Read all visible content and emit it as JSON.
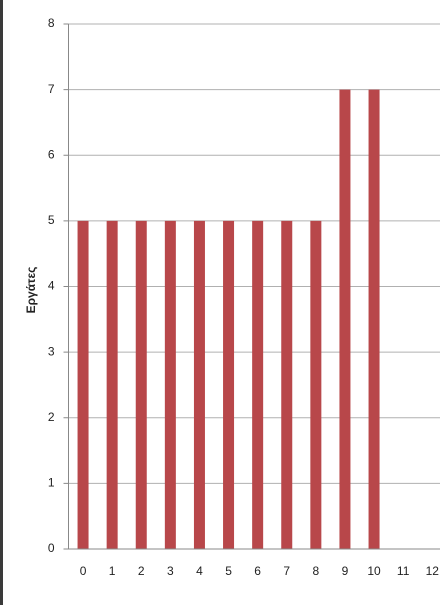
{
  "chart_data": {
    "type": "bar",
    "y_label": "Εργάτες",
    "categories": [
      "0",
      "1",
      "2",
      "3",
      "4",
      "5",
      "6",
      "7",
      "8",
      "9",
      "10",
      "11",
      "12"
    ],
    "values": [
      5,
      5,
      5,
      5,
      5,
      5,
      5,
      5,
      5,
      7,
      7,
      null,
      null
    ],
    "color": "#b8474a",
    "ylim": [
      0,
      8
    ],
    "yticks": [
      0,
      1,
      2,
      3,
      4,
      5,
      6,
      7,
      8
    ],
    "grid": true
  }
}
